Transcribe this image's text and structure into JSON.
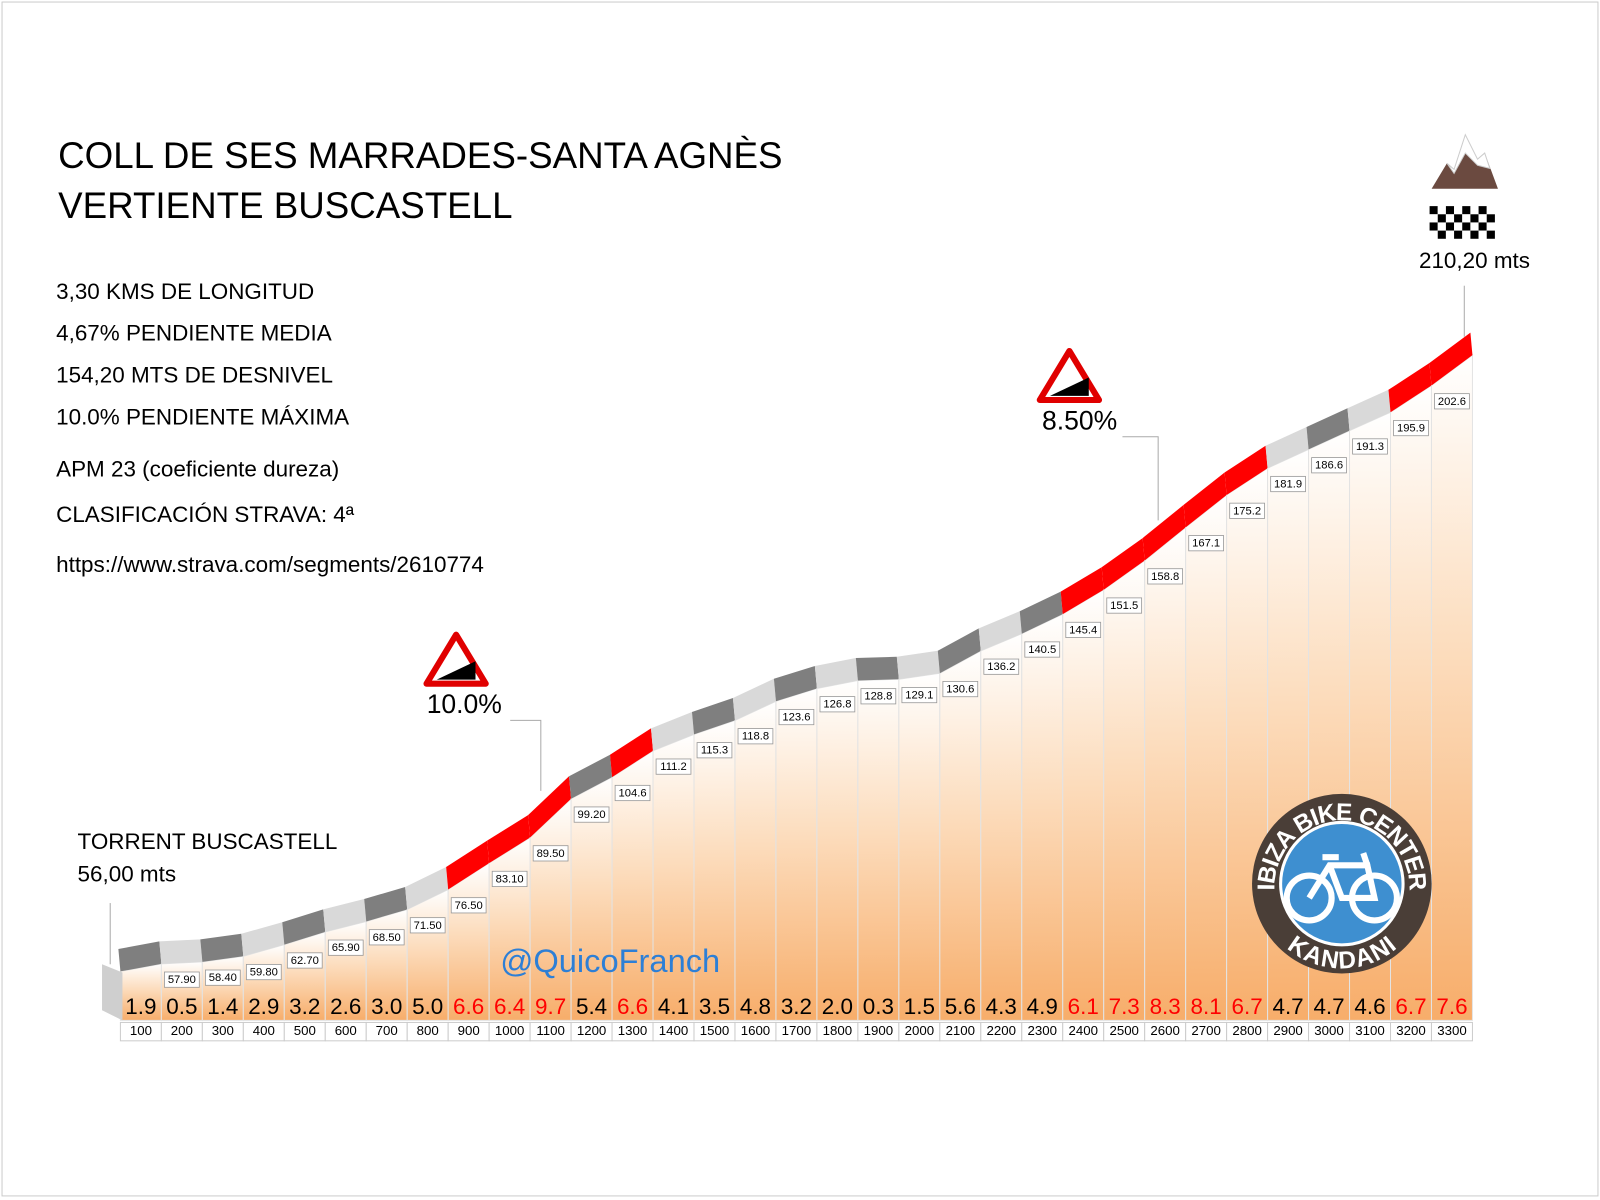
{
  "chart_data": {
    "type": "profile",
    "title": [
      "COLL DE SES MARRADES-SANTA AGNÈS",
      "VERTIENTE BUSCASTELL"
    ],
    "stats": [
      "3,30 KMS DE LONGITUD",
      "4,67% PENDIENTE MEDIA",
      "154,20 MTS DE DESNIVEL",
      "10.0% PENDIENTE MÁXIMA",
      "APM 23 (coeficiente dureza)",
      "CLASIFICACIÓN STRAVA: 4ª",
      "https://www.strava.com/segments/2610774"
    ],
    "x": [
      100,
      200,
      300,
      400,
      500,
      600,
      700,
      800,
      900,
      1000,
      1100,
      1200,
      1300,
      1400,
      1500,
      1600,
      1700,
      1800,
      1900,
      2000,
      2100,
      2200,
      2300,
      2400,
      2500,
      2600,
      2700,
      2800,
      2900,
      3000,
      3100,
      3200,
      3300
    ],
    "elevations": {
      "values": [
        null,
        57.9,
        58.4,
        59.8,
        62.7,
        65.9,
        68.5,
        71.5,
        76.5,
        83.1,
        89.5,
        99.2,
        104.6,
        111.2,
        115.3,
        118.8,
        123.6,
        126.8,
        128.8,
        129.1,
        130.6,
        136.2,
        140.5,
        145.4,
        151.5,
        158.8,
        167.1,
        175.2,
        181.9,
        186.6,
        191.3,
        195.9,
        202.6
      ],
      "value_labels": [
        null,
        "57.90",
        "58.40",
        "59.80",
        "62.70",
        "65.90",
        "68.50",
        "71.50",
        "76.50",
        "83.10",
        "89.50",
        "99.20",
        "104.6",
        "111.2",
        "115.3",
        "118.8",
        "123.6",
        "126.8",
        "128.8",
        "129.1",
        "130.6",
        "136.2",
        "140.5",
        "145.4",
        "151.5",
        "158.8",
        "167.1",
        "175.2",
        "181.9",
        "186.6",
        "191.3",
        "195.9",
        "202.6"
      ]
    },
    "gradients": {
      "values": [
        1.9,
        0.5,
        1.4,
        2.9,
        3.2,
        2.6,
        3.0,
        5.0,
        6.6,
        6.4,
        9.7,
        5.4,
        6.6,
        4.1,
        3.5,
        4.8,
        3.2,
        2.0,
        0.3,
        1.5,
        5.6,
        4.3,
        4.9,
        6.1,
        7.3,
        8.3,
        8.1,
        6.7,
        4.7,
        4.7,
        4.6,
        6.7,
        7.6
      ],
      "value_labels": [
        "1.9",
        "0.5",
        "1.4",
        "2.9",
        "3.2",
        "2.6",
        "3.0",
        "5.0",
        "6.6",
        "6.4",
        "9.7",
        "5.4",
        "6.6",
        "4.1",
        "3.5",
        "4.8",
        "3.2",
        "2.0",
        "0.3",
        "1.5",
        "5.6",
        "4.3",
        "4.9",
        "6.1",
        "7.3",
        "8.3",
        "8.1",
        "6.7",
        "4.7",
        "4.7",
        "4.6",
        "6.7",
        "7.6"
      ],
      "colors": [
        "#7f7f7f",
        "#d9d9d9",
        "#7f7f7f",
        "#d9d9d9",
        "#7f7f7f",
        "#d9d9d9",
        "#7f7f7f",
        "#d9d9d9",
        "#ff0000",
        "#ff0000",
        "#ff0000",
        "#7f7f7f",
        "#ff0000",
        "#d9d9d9",
        "#7f7f7f",
        "#d9d9d9",
        "#7f7f7f",
        "#d9d9d9",
        "#7f7f7f",
        "#d9d9d9",
        "#7f7f7f",
        "#d9d9d9",
        "#7f7f7f",
        "#ff0000",
        "#ff0000",
        "#ff0000",
        "#ff0000",
        "#ff0000",
        "#d9d9d9",
        "#7f7f7f",
        "#d9d9d9",
        "#ff0000",
        "#ff0000"
      ],
      "label_colors": [
        "#000000",
        "#000000",
        "#000000",
        "#000000",
        "#000000",
        "#000000",
        "#000000",
        "#000000",
        "#ff0000",
        "#ff0000",
        "#ff0000",
        "#000000",
        "#ff0000",
        "#000000",
        "#000000",
        "#000000",
        "#000000",
        "#000000",
        "#000000",
        "#000000",
        "#000000",
        "#000000",
        "#000000",
        "#ff0000",
        "#ff0000",
        "#ff0000",
        "#ff0000",
        "#ff0000",
        "#000000",
        "#000000",
        "#000000",
        "#ff0000",
        "#ff0000"
      ]
    },
    "start": {
      "name": "TORRENT BUSCASTELL",
      "value": 56,
      "label": "56,00 mts"
    },
    "summit": {
      "value": 210.2,
      "label": "210,20 mts"
    },
    "annotations": [
      "10.0%",
      "8.50%"
    ],
    "credit": "@QuicoFranch",
    "logo": {
      "top": "IBIZA BIKE CENTER",
      "bottom": "KANDANI"
    }
  }
}
